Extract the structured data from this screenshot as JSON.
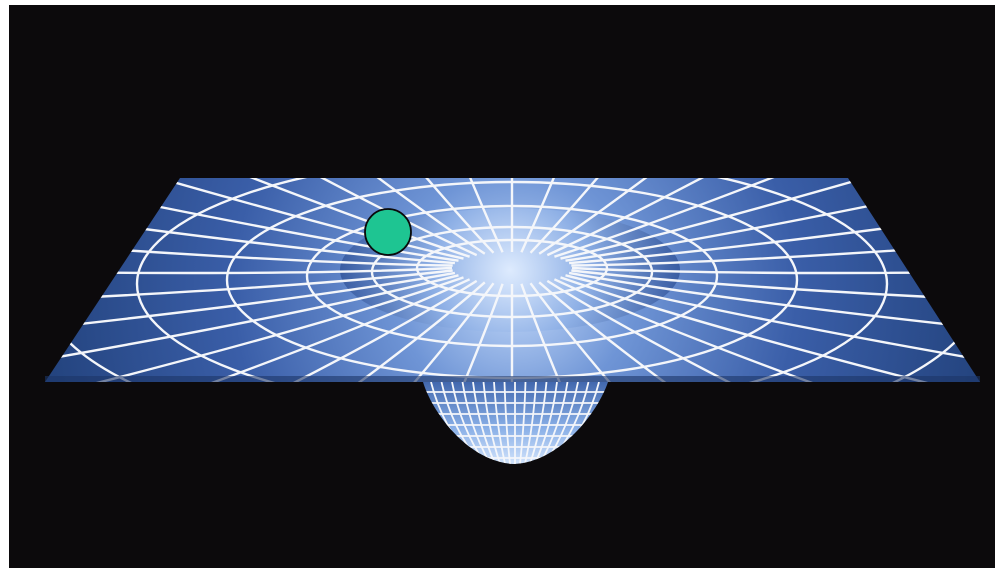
{
  "scene": {
    "subject": "gravity-well-spacetime-grid",
    "background_color": "#0c0a0c",
    "frame_color": "#ffffff",
    "sheet_color_edge": "#2a4a8c",
    "sheet_color_center": "#a8c4ee",
    "grid_line_color": "#f4f6fa",
    "marker": {
      "shape": "circle",
      "fill_color": "#1ec592",
      "stroke_color": "#0a0a0a"
    }
  }
}
